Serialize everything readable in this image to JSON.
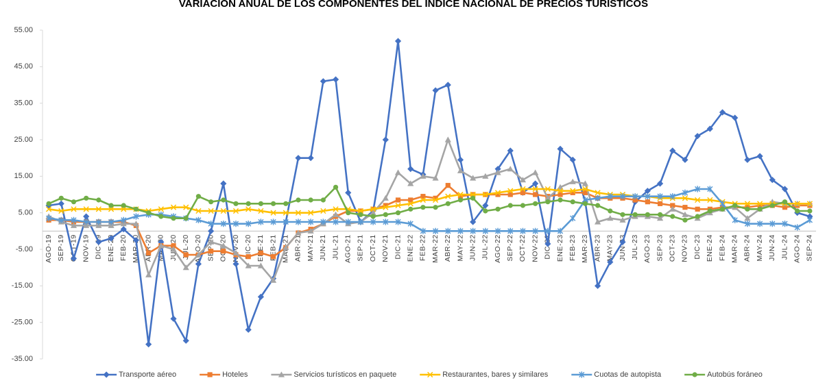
{
  "chart_data": {
    "type": "line",
    "title": "VARIACIÓN ANUAL DE LOS COMPONENTES DEL ÍNDICE NACIONAL DE PRECIOS TURÍSTICOS",
    "categories": [
      "AGO-19",
      "SEP-19",
      "OCT-19",
      "NOV-19",
      "DIC-19",
      "ENE-20",
      "FEB-20",
      "MAR-20",
      "ABR-20",
      "MAY-20",
      "JUN-20",
      "JUL-20",
      "AGO-20",
      "SEP-20",
      "OCT-20",
      "NOV-20",
      "DIC-20",
      "ENE-21",
      "FEB-21",
      "MAR-21",
      "ABR-21",
      "MAY-21",
      "JUN-21",
      "JUL-21",
      "AGO-21",
      "SEP-21",
      "OCT-21",
      "NOV-21",
      "DIC-21",
      "ENE-22",
      "FEB-22",
      "MAR-22",
      "ABR-22",
      "MAY-22",
      "JUN-22",
      "JUL-22",
      "AGO-22",
      "SEP-22",
      "OCT-22",
      "NOV-22",
      "DIC-22",
      "ENE-23",
      "FEB-23",
      "MAR-23",
      "ABR-23",
      "MAY-23",
      "JUN-23",
      "JUL-23",
      "AGO-23",
      "SEP-23",
      "OCT-23",
      "NOV-23",
      "DIC-23",
      "ENE-24",
      "FEB-24",
      "MAR-24",
      "ABR-24",
      "MAY-24",
      "JUN-24",
      "JUL-24",
      "AGO-24",
      "SEP-24"
    ],
    "series": [
      {
        "name": "Transporte aéreo",
        "color": "#4472c4",
        "marker": "diamond",
        "values": [
          7,
          7.5,
          -7.5,
          4,
          -3,
          -2,
          0.5,
          -2.5,
          -31,
          -3,
          -24,
          -30,
          -9,
          0,
          13,
          -9,
          -27,
          -18,
          -13,
          2.5,
          20,
          20,
          41,
          41.5,
          10.5,
          2.5,
          5.5,
          25,
          52,
          17,
          15.5,
          38.5,
          40,
          19.5,
          2.5,
          7,
          17,
          22,
          10.5,
          13,
          -3.5,
          22.5,
          19.5,
          8,
          -15,
          -8.5,
          -3,
          8,
          11,
          13,
          22,
          19.5,
          26,
          28,
          32.5,
          31,
          19.5,
          20.5,
          14,
          11.5,
          5,
          4
        ]
      },
      {
        "name": "Hoteles",
        "color": "#ed7d31",
        "marker": "square",
        "values": [
          3,
          3,
          2.5,
          2.5,
          2.5,
          2.5,
          2.5,
          1.5,
          -6,
          -4,
          -4,
          -6.5,
          -6.5,
          -5.5,
          -5.5,
          -6.5,
          -7,
          -6,
          -7,
          -4.5,
          -0.5,
          0.5,
          2,
          4,
          5.5,
          5.5,
          6,
          7,
          8.5,
          8.5,
          9.5,
          9,
          12.5,
          9.5,
          10,
          10,
          10,
          10,
          10.5,
          10,
          9.5,
          10,
          10.5,
          10.5,
          9,
          9,
          9,
          8.5,
          8,
          7.5,
          7,
          6.5,
          6,
          6,
          6.5,
          6.5,
          6.5,
          7,
          7,
          6.5,
          7,
          7
        ]
      },
      {
        "name": "Servicios turísticos en paquete",
        "color": "#a5a5a5",
        "marker": "triangle",
        "values": [
          4,
          2.5,
          1.5,
          1.5,
          1.5,
          1.5,
          2,
          2,
          -12,
          -4,
          -5,
          -10,
          -6.5,
          -3,
          -4,
          -6,
          -9.5,
          -9.5,
          -13.5,
          -4.5,
          -0.5,
          0,
          2,
          4.5,
          2,
          2.5,
          5,
          9,
          16,
          13,
          15,
          14.5,
          25,
          16.5,
          14.5,
          15,
          16,
          17,
          14,
          16,
          9,
          12,
          13.5,
          13,
          2.5,
          3.5,
          3,
          4,
          4,
          3.5,
          6,
          4.5,
          3.5,
          5,
          6,
          6.5,
          3.5,
          6,
          8,
          7.5,
          7.5,
          7.5
        ]
      },
      {
        "name": "Restaurantes, bares y similares",
        "color": "#ffc000",
        "marker": "x",
        "values": [
          6,
          5.5,
          6,
          6,
          6,
          6,
          6,
          6,
          5.5,
          6,
          6.5,
          6.5,
          5.5,
          5.5,
          5.5,
          5.5,
          6,
          5.5,
          5,
          5,
          5,
          5,
          5.5,
          6,
          6,
          5.5,
          6,
          6.5,
          7,
          7.5,
          8.5,
          8.5,
          9.5,
          10,
          10,
          10,
          10.5,
          11,
          11.5,
          11.5,
          11.5,
          11,
          11,
          11.5,
          10.5,
          10,
          10,
          9.5,
          9.5,
          9,
          9,
          9,
          8.5,
          8.5,
          8,
          7.5,
          7.5,
          7.5,
          7.5,
          7.5,
          7.5,
          7.5
        ]
      },
      {
        "name": "Cuotas de autopista",
        "color": "#5b9bd5",
        "marker": "star",
        "values": [
          3.5,
          3,
          3,
          2.5,
          2.5,
          2.5,
          3,
          4,
          4.5,
          4.5,
          4,
          3.5,
          3,
          2,
          2,
          2,
          2,
          2.5,
          2.5,
          2.5,
          2.5,
          2.5,
          2.5,
          2.5,
          2.5,
          2.5,
          2.5,
          2.5,
          2.5,
          2,
          0,
          0,
          0,
          0,
          0,
          0,
          0,
          0,
          0,
          0,
          0,
          0,
          3.5,
          8.5,
          9,
          9.5,
          9.5,
          9.5,
          9.5,
          9.5,
          9.5,
          10.5,
          11.5,
          11.5,
          7.5,
          3,
          2,
          2,
          2,
          2,
          1,
          3
        ]
      },
      {
        "name": "Autobús foráneo",
        "color": "#70ad47",
        "marker": "circle",
        "values": [
          7.5,
          9,
          8,
          9,
          8.5,
          7,
          7,
          6,
          5,
          4,
          3.5,
          3.5,
          9.5,
          8,
          8.5,
          7.5,
          7.5,
          7.5,
          7.5,
          7.5,
          8.5,
          8.5,
          8.5,
          12,
          5,
          4.5,
          4,
          4.5,
          5,
          6,
          6.5,
          6.5,
          7.5,
          8.5,
          9,
          5.5,
          6,
          7,
          7,
          7.5,
          8,
          8.5,
          8,
          7.5,
          7,
          5.5,
          4.5,
          4.5,
          4.5,
          4.5,
          4,
          3,
          4,
          5.5,
          6,
          7,
          6,
          6,
          7,
          8,
          5.5,
          5.5
        ]
      }
    ],
    "ylim": [
      -35,
      55
    ],
    "yticks": [
      {
        "value": -35,
        "label": "-35.00"
      },
      {
        "value": -25,
        "label": "-25.00"
      },
      {
        "value": -15,
        "label": "-15.00"
      },
      {
        "value": -5,
        "label": "-5.00"
      },
      {
        "value": 5,
        "label": "5.00"
      },
      {
        "value": 15,
        "label": "15.00"
      },
      {
        "value": 25,
        "label": "25.00"
      },
      {
        "value": 35,
        "label": "35.00"
      },
      {
        "value": 45,
        "label": "45.00"
      },
      {
        "value": 55,
        "label": "55.00"
      }
    ],
    "grid": false,
    "legend": "bottom"
  }
}
